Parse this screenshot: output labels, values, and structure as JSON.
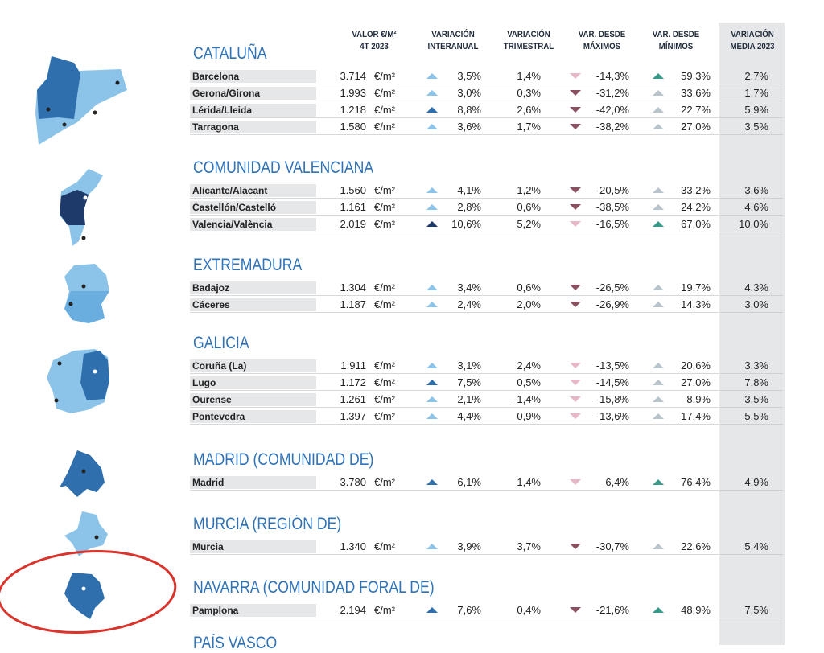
{
  "header": {
    "columns": [
      [
        "VALOR €/M²",
        "4T 2023"
      ],
      [
        "VARIACIÓN",
        "INTERANUAL"
      ],
      [
        "VARIACIÓN",
        "TRIMESTRAL"
      ],
      [
        "VAR. DESDE",
        "MÁXIMOS"
      ],
      [
        "VAR. DESDE",
        "MÍNIMOS"
      ],
      [
        "VARIACIÓN",
        "MEDIA 2023"
      ]
    ]
  },
  "unit": "€/m²",
  "sections": [
    {
      "title": "CATALUÑA",
      "rows": [
        {
          "name": "Barcelona",
          "value": "3.714",
          "cells": [
            "3,5%",
            "1,4%",
            "-14,3%",
            "59,3%",
            "2,7%"
          ],
          "icon_colors": [
            "#8cc3e8",
            "#e6b8c6",
            "#3a9a8a"
          ]
        },
        {
          "name": "Gerona/Girona",
          "value": "1.993",
          "cells": [
            "3,0%",
            "0,3%",
            "-31,2%",
            "33,6%",
            "1,7%"
          ],
          "icon_colors": [
            "#8cc3e8",
            "#8a5060",
            "#b8c4cc"
          ]
        },
        {
          "name": "Lérida/Lleida",
          "value": "1.218",
          "cells": [
            "8,8%",
            "2,6%",
            "-42,0%",
            "22,7%",
            "5,9%"
          ],
          "icon_colors": [
            "#2f6fae",
            "#8a5060",
            "#b8c4cc"
          ]
        },
        {
          "name": "Tarragona",
          "value": "1.580",
          "cells": [
            "3,6%",
            "1,7%",
            "-38,2%",
            "27,0%",
            "3,5%"
          ],
          "icon_colors": [
            "#8cc3e8",
            "#8a5060",
            "#b8c4cc"
          ]
        }
      ]
    },
    {
      "title": "COMUNIDAD VALENCIANA",
      "rows": [
        {
          "name": "Alicante/Alacant",
          "value": "1.560",
          "cells": [
            "4,1%",
            "1,2%",
            "-20,5%",
            "33,2%",
            "3,6%"
          ],
          "icon_colors": [
            "#8cc3e8",
            "#8a5060",
            "#b8c4cc"
          ]
        },
        {
          "name": "Castellón/Castelló",
          "value": "1.161",
          "cells": [
            "2,8%",
            "0,6%",
            "-38,5%",
            "24,2%",
            "4,6%"
          ],
          "icon_colors": [
            "#8cc3e8",
            "#8a5060",
            "#b8c4cc"
          ]
        },
        {
          "name": "Valencia/València",
          "value": "2.019",
          "cells": [
            "10,6%",
            "5,2%",
            "-16,5%",
            "67,0%",
            "10,0%"
          ],
          "icon_colors": [
            "#1d3a6b",
            "#e6b8c6",
            "#3a9a8a"
          ]
        }
      ]
    },
    {
      "title": "EXTREMADURA",
      "rows": [
        {
          "name": "Badajoz",
          "value": "1.304",
          "cells": [
            "3,4%",
            "0,6%",
            "-26,5%",
            "19,7%",
            "4,3%"
          ],
          "icon_colors": [
            "#8cc3e8",
            "#8a5060",
            "#b8c4cc"
          ]
        },
        {
          "name": "Cáceres",
          "value": "1.187",
          "cells": [
            "2,4%",
            "2,0%",
            "-26,9%",
            "14,3%",
            "3,0%"
          ],
          "icon_colors": [
            "#8cc3e8",
            "#8a5060",
            "#b8c4cc"
          ]
        }
      ]
    },
    {
      "title": "GALICIA",
      "rows": [
        {
          "name": "Coruña (La)",
          "value": "1.911",
          "cells": [
            "3,1%",
            "2,4%",
            "-13,5%",
            "20,6%",
            "3,3%"
          ],
          "icon_colors": [
            "#8cc3e8",
            "#e6b8c6",
            "#b8c4cc"
          ]
        },
        {
          "name": "Lugo",
          "value": "1.172",
          "cells": [
            "7,5%",
            "0,5%",
            "-14,5%",
            "27,0%",
            "7,8%"
          ],
          "icon_colors": [
            "#2f6fae",
            "#e6b8c6",
            "#b8c4cc"
          ]
        },
        {
          "name": "Ourense",
          "value": "1.261",
          "cells": [
            "2,1%",
            "-1,4%",
            "-15,8%",
            "8,9%",
            "3,5%"
          ],
          "icon_colors": [
            "#8cc3e8",
            "#e6b8c6",
            "#b8c4cc"
          ]
        },
        {
          "name": "Pontevedra",
          "value": "1.397",
          "cells": [
            "4,4%",
            "0,9%",
            "-13,6%",
            "17,4%",
            "5,5%"
          ],
          "icon_colors": [
            "#8cc3e8",
            "#e6b8c6",
            "#b8c4cc"
          ]
        }
      ]
    },
    {
      "title": "MADRID (COMUNIDAD DE)",
      "rows": [
        {
          "name": "Madrid",
          "value": "3.780",
          "cells": [
            "6,1%",
            "1,4%",
            "-6,4%",
            "76,4%",
            "4,9%"
          ],
          "icon_colors": [
            "#2f6fae",
            "#e6b8c6",
            "#3a9a8a"
          ]
        }
      ]
    },
    {
      "title": "MURCIA (REGIÓN DE)",
      "rows": [
        {
          "name": "Murcia",
          "value": "1.340",
          "cells": [
            "3,9%",
            "3,7%",
            "-30,7%",
            "22,6%",
            "5,4%"
          ],
          "icon_colors": [
            "#8cc3e8",
            "#8a5060",
            "#b8c4cc"
          ]
        }
      ]
    },
    {
      "title": "NAVARRA (COMUNIDAD FORAL DE)",
      "rows": [
        {
          "name": "Pamplona",
          "value": "2.194",
          "cells": [
            "7,6%",
            "0,4%",
            "-21,6%",
            "48,9%",
            "7,5%"
          ],
          "icon_colors": [
            "#2f6fae",
            "#8a5060",
            "#3a9a8a"
          ]
        }
      ]
    },
    {
      "title": "PAÍS VASCO",
      "rows": []
    }
  ]
}
